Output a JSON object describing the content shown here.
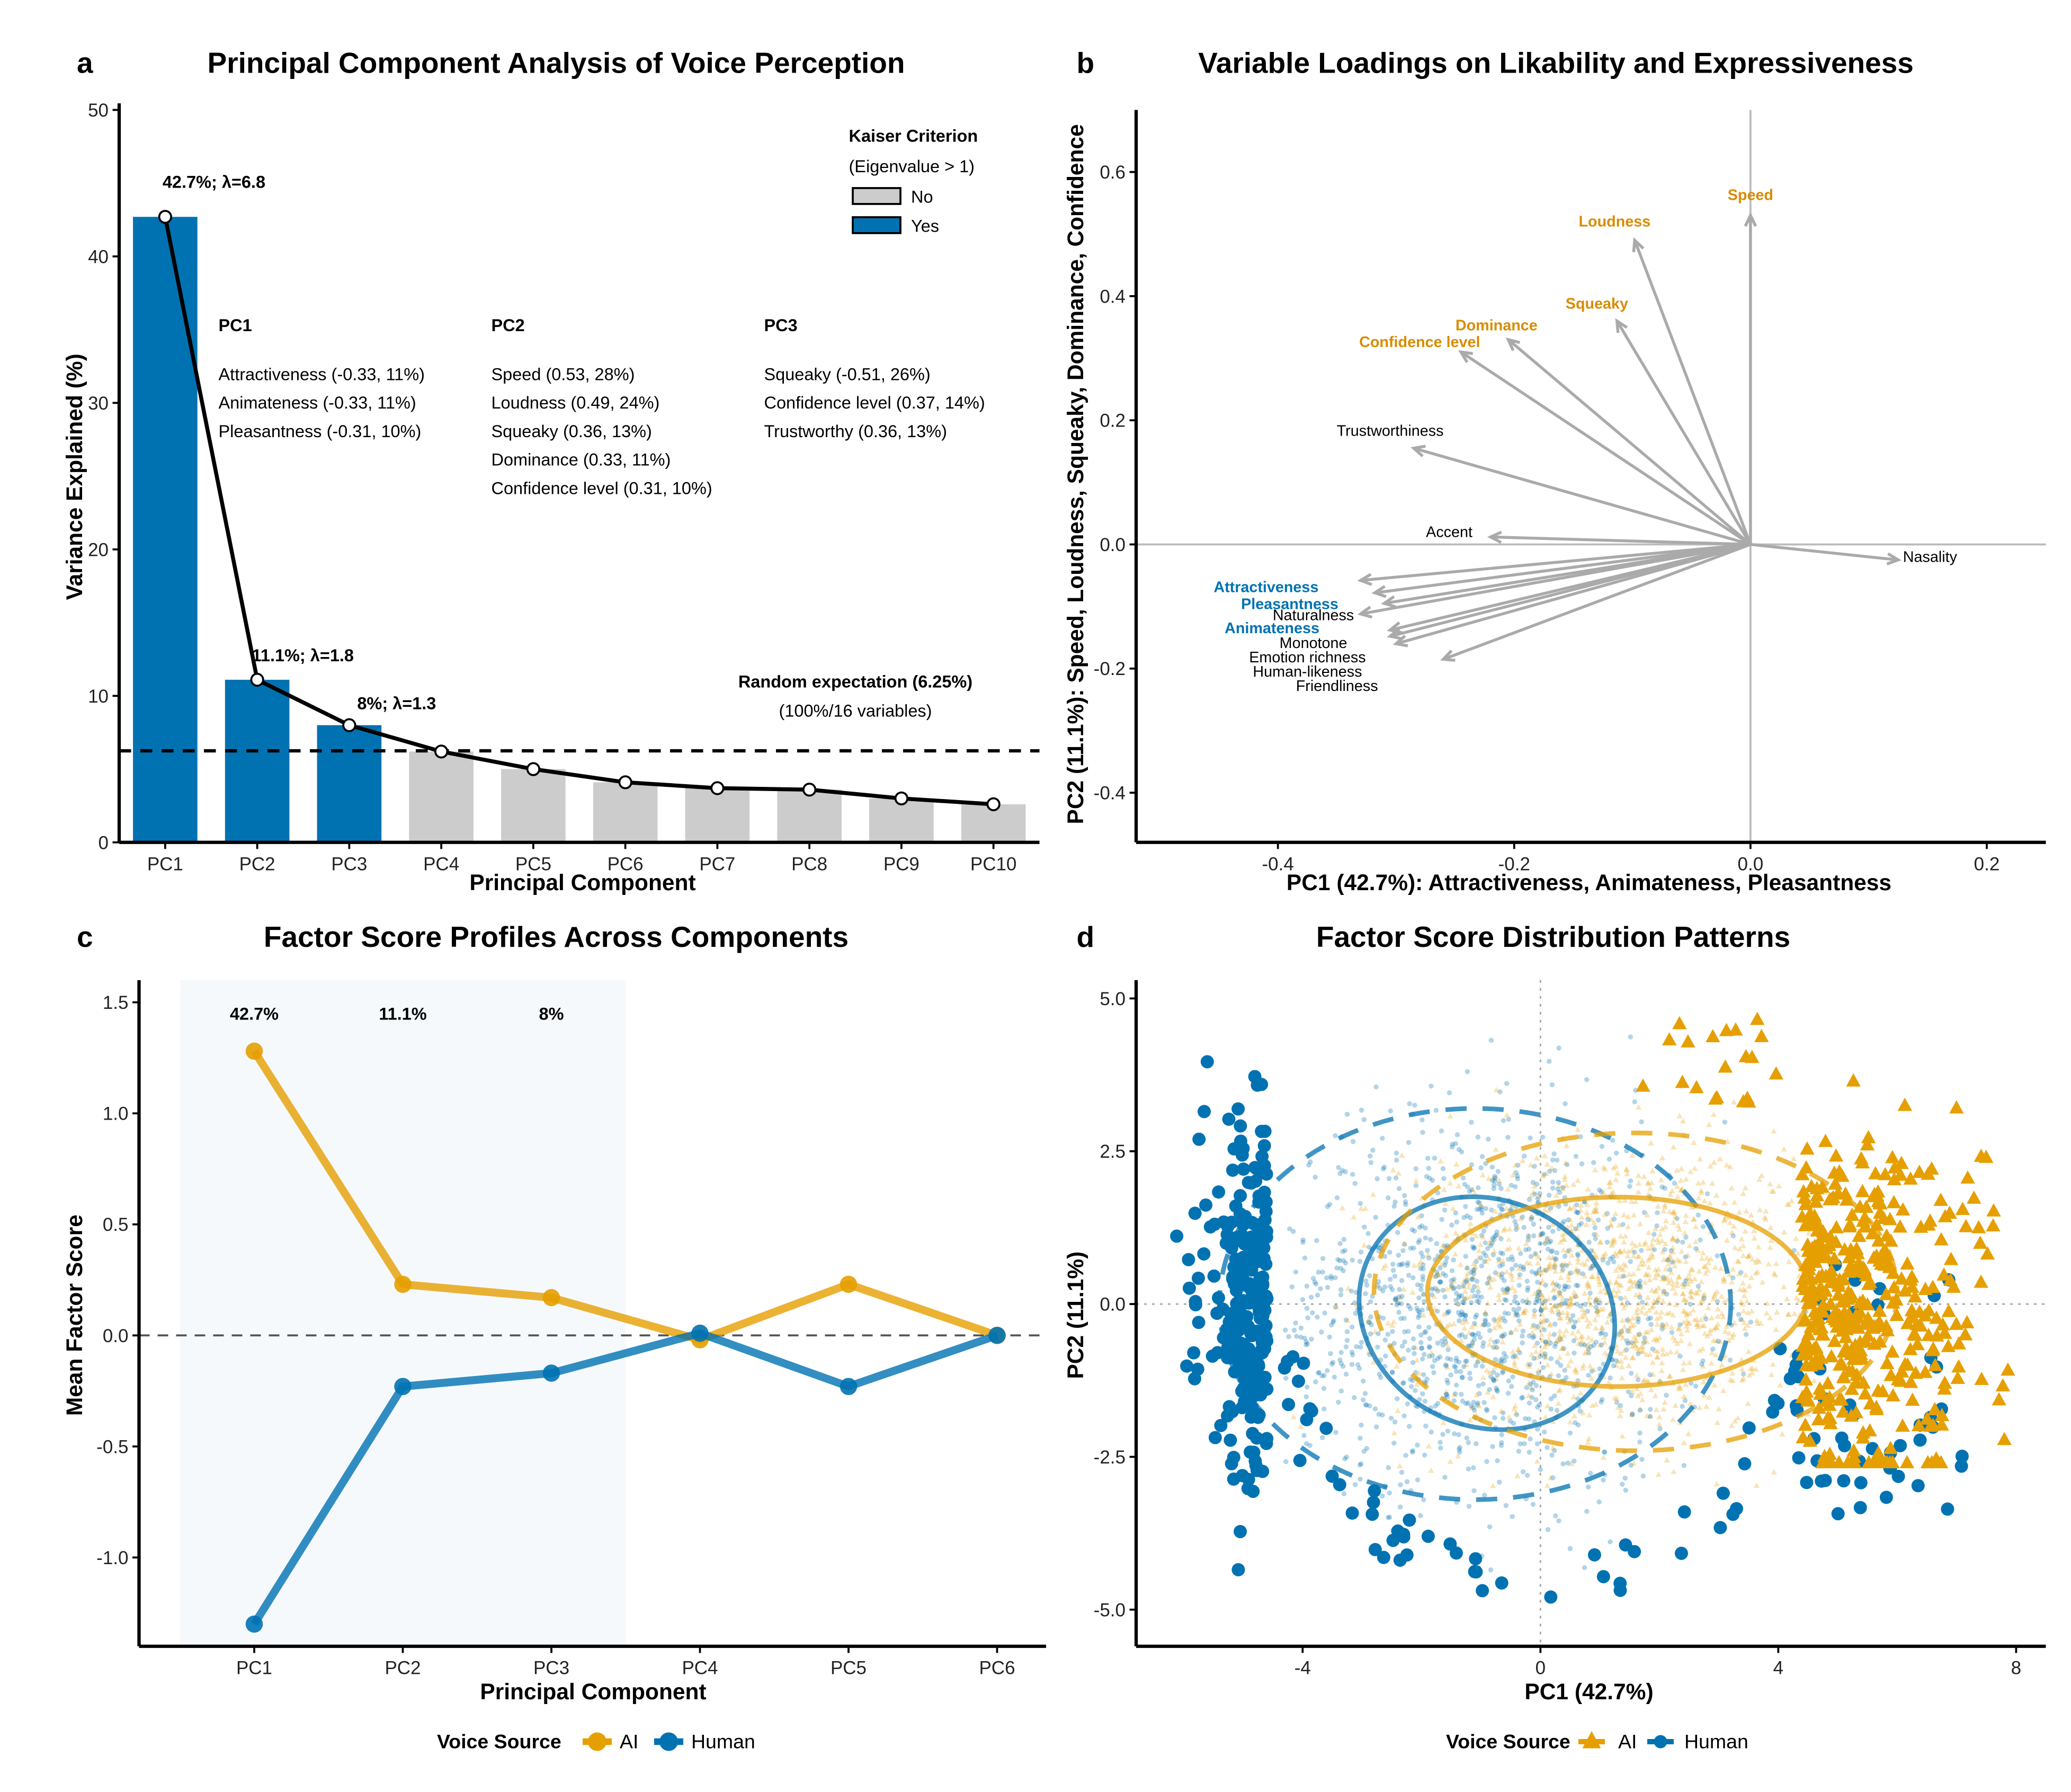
{
  "figure": {
    "panels": [
      "a",
      "b",
      "c",
      "d"
    ]
  },
  "chart_data": [
    {
      "panel": "a",
      "type": "bar",
      "title": "Principal Component Analysis of Voice Perception",
      "xlabel": "Principal Component",
      "ylabel": "Variance Explained (%)",
      "ylim": [
        0,
        50
      ],
      "yticks": [
        0,
        10,
        20,
        30,
        40,
        50
      ],
      "categories": [
        "PC1",
        "PC2",
        "PC3",
        "PC4",
        "PC5",
        "PC6",
        "PC7",
        "PC8",
        "PC9",
        "PC10"
      ],
      "values": [
        42.7,
        11.1,
        8.0,
        6.2,
        5.0,
        4.1,
        3.7,
        3.6,
        3.0,
        2.6
      ],
      "kaiser": [
        "Yes",
        "Yes",
        "Yes",
        "No",
        "No",
        "No",
        "No",
        "No",
        "No",
        "No"
      ],
      "line_series": "scree line through bar tops",
      "point_labels": [
        {
          "index": 0,
          "text": "42.7%; λ=6.8"
        },
        {
          "index": 1,
          "text": "11.1%; λ=1.8"
        },
        {
          "index": 2,
          "text": "8%; λ=1.3"
        }
      ],
      "reference_line": {
        "value": 6.25,
        "label": "Random expectation (6.25%)",
        "sublabel": "(100%/16 variables)",
        "style": "dashed"
      },
      "legend": {
        "title": "Kaiser Criterion",
        "subtitle": "(Eigenvalue > 1)",
        "position": "top-right",
        "entries": [
          {
            "label": "No",
            "color": "#cccccc"
          },
          {
            "label": "Yes",
            "color": "#0072b2"
          }
        ]
      },
      "colors": {
        "yes": "#0072b2",
        "no": "#cccccc",
        "line": "#000000"
      },
      "annotations": [
        {
          "header": "PC1",
          "lines": [
            "Attractiveness (-0.33, 11%)",
            "Animateness (-0.33, 11%)",
            "Pleasantness (-0.31, 10%)"
          ]
        },
        {
          "header": "PC2",
          "lines": [
            "Speed (0.53, 28%)",
            "Loudness (0.49, 24%)",
            "Squeaky (0.36, 13%)",
            "Dominance (0.33, 11%)",
            "Confidence level (0.31, 10%)"
          ]
        },
        {
          "header": "PC3",
          "lines": [
            "Squeaky (-0.51, 26%)",
            "Confidence level (0.37, 14%)",
            "Trustworthy (0.36, 13%)"
          ]
        }
      ]
    },
    {
      "panel": "b",
      "type": "scatter",
      "subtype": "biplot-arrows",
      "title": "Variable Loadings on Likability and Expressiveness",
      "xlabel": "PC1 (42.7%): Attractiveness, Animateness, Pleasantness",
      "ylabel": "PC2 (11.1%): Speed, Loudness, Squeaky, Dominance, Confidence",
      "xlim": [
        -0.52,
        0.25
      ],
      "ylim": [
        -0.48,
        0.7
      ],
      "xticks": [
        -0.4,
        -0.2,
        0.0,
        0.2
      ],
      "yticks": [
        -0.4,
        -0.2,
        0.0,
        0.2,
        0.4,
        0.6
      ],
      "xtick_labels": [
        "-0.4",
        "-0.2",
        "0.0",
        "0.2"
      ],
      "ytick_labels": [
        "-0.4",
        "-0.2",
        "0.0",
        "0.2",
        "0.4",
        "0.6"
      ],
      "arrows": [
        {
          "name": "Speed",
          "x": 0.0,
          "y": 0.53,
          "group": "PC2",
          "lx": 0.0,
          "ly": 0.555
        },
        {
          "name": "Loudness",
          "x": -0.098,
          "y": 0.49,
          "group": "PC2",
          "lx": -0.115,
          "ly": 0.512
        },
        {
          "name": "Squeaky",
          "x": -0.113,
          "y": 0.36,
          "group": "PC2",
          "lx": -0.13,
          "ly": 0.38
        },
        {
          "name": "Dominance",
          "x": -0.205,
          "y": 0.33,
          "group": "PC2",
          "lx": -0.215,
          "ly": 0.345
        },
        {
          "name": "Confidence level",
          "x": -0.245,
          "y": 0.31,
          "group": "PC2",
          "lx": -0.28,
          "ly": 0.318
        },
        {
          "name": "Trustworthiness",
          "x": -0.285,
          "y": 0.155,
          "group": "none",
          "lx": -0.305,
          "ly": 0.175
        },
        {
          "name": "Accent",
          "x": -0.22,
          "y": 0.012,
          "group": "none",
          "lx": -0.255,
          "ly": 0.012
        },
        {
          "name": "Nasality",
          "x": 0.125,
          "y": -0.025,
          "group": "none",
          "lx": 0.152,
          "ly": -0.028
        },
        {
          "name": "Attractiveness",
          "x": -0.33,
          "y": -0.058,
          "group": "PC1",
          "lx": -0.41,
          "ly": -0.077
        },
        {
          "name": "Pleasantness",
          "x": -0.318,
          "y": -0.078,
          "group": "PC1",
          "lx": -0.39,
          "ly": -0.104
        },
        {
          "name": "Naturalness",
          "x": -0.31,
          "y": -0.095,
          "group": "none",
          "lx": -0.37,
          "ly": -0.122
        },
        {
          "name": "Animateness",
          "x": -0.33,
          "y": -0.112,
          "group": "PC1",
          "lx": -0.405,
          "ly": -0.143
        },
        {
          "name": "Monotone",
          "x": -0.305,
          "y": -0.138,
          "group": "none",
          "lx": -0.37,
          "ly": -0.167
        },
        {
          "name": "Emotion richness",
          "x": -0.305,
          "y": -0.148,
          "group": "none",
          "lx": -0.375,
          "ly": -0.19
        },
        {
          "name": "Human-likeness",
          "x": -0.3,
          "y": -0.16,
          "group": "none",
          "lx": -0.375,
          "ly": -0.213
        },
        {
          "name": "Friendliness",
          "x": -0.26,
          "y": -0.185,
          "group": "none",
          "lx": -0.35,
          "ly": -0.236
        }
      ],
      "colors": {
        "PC1": "#0072b2",
        "PC2": "#d98c00",
        "none": "#000000",
        "arrow": "#aaaaaa",
        "ref": "#bbbbbb"
      }
    },
    {
      "panel": "c",
      "type": "line",
      "title": "Factor Score Profiles Across Components",
      "xlabel": "Principal Component",
      "ylabel": "Mean Factor Score",
      "categories": [
        "PC1",
        "PC2",
        "PC3",
        "PC4",
        "PC5",
        "PC6"
      ],
      "ylim": [
        -1.4,
        1.6
      ],
      "yticks": [
        -1.0,
        -0.5,
        0.0,
        0.5,
        1.0,
        1.5
      ],
      "ytick_labels": [
        "-1.0",
        "-0.5",
        "0.0",
        "0.5",
        "1.0",
        "1.5"
      ],
      "series": [
        {
          "name": "AI",
          "values": [
            1.28,
            0.23,
            0.17,
            -0.02,
            0.23,
            0.0
          ],
          "color": "#e69f00"
        },
        {
          "name": "Human",
          "values": [
            -1.3,
            -0.23,
            -0.17,
            0.01,
            -0.23,
            0.0
          ],
          "color": "#0072b2"
        }
      ],
      "highlight": {
        "from": "PC1",
        "to": "PC3",
        "labels": [
          "42.7%",
          "11.1%",
          "8%"
        ]
      },
      "reference_line": {
        "value": 0.0,
        "style": "dashed"
      },
      "legend": {
        "title": "Voice Source",
        "position": "bottom",
        "entries": [
          "AI",
          "Human"
        ]
      }
    },
    {
      "panel": "d",
      "type": "scatter",
      "title": "Factor Score Distribution Patterns",
      "xlabel": "PC1 (42.7%)",
      "ylabel": "PC2 (11.1%)",
      "xlim": [
        -6.8,
        8.5
      ],
      "ylim": [
        -5.6,
        5.3
      ],
      "xticks": [
        -4,
        0,
        4,
        8
      ],
      "yticks": [
        -5.0,
        -2.5,
        0.0,
        2.5,
        5.0
      ],
      "xtick_labels": [
        "-4",
        "0",
        "4",
        "8"
      ],
      "ytick_labels": [
        "-5.0",
        "-2.5",
        "0.0",
        "2.5",
        "5.0"
      ],
      "series": [
        {
          "name": "AI",
          "marker": "triangle",
          "color": "#e69f00",
          "center": [
            1.3,
            0.2
          ],
          "spread": [
            1.8,
            1.2
          ],
          "outlier_region": "PC1 > 4",
          "ellipse_inner": {
            "cx": 1.3,
            "cy": 0.2,
            "rx": 3.2,
            "ry": 1.55
          },
          "ellipse_outer": {
            "cx": 1.6,
            "cy": 0.2,
            "rx": 4.4,
            "ry": 2.6
          }
        },
        {
          "name": "Human",
          "marker": "circle",
          "color": "#0072b2",
          "center": [
            -1.0,
            0.0
          ],
          "spread": [
            1.9,
            1.5
          ],
          "outlier_region": "PC1 < -4",
          "ellipse_inner": {
            "cx": -0.9,
            "cy": -0.15,
            "rx": 2.2,
            "ry": 1.85
          },
          "ellipse_outer": {
            "cx": -1.1,
            "cy": 0.0,
            "rx": 4.3,
            "ry": 3.2
          }
        }
      ],
      "reference_lines": {
        "x": 0,
        "y": 0,
        "style": "dotted"
      },
      "legend": {
        "title": "Voice Source",
        "position": "bottom",
        "entries": [
          "AI",
          "Human"
        ]
      }
    }
  ]
}
